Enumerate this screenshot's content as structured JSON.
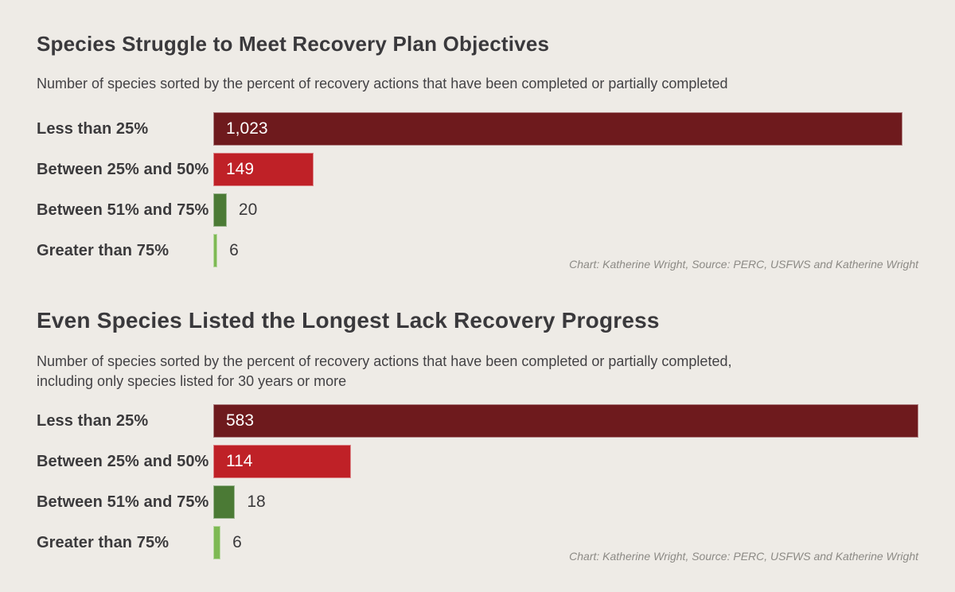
{
  "page": {
    "background": "#eeebe6",
    "accent_colors": {
      "dark_red": "#6e1a1d",
      "red": "#bf2127",
      "dark_green": "#4b7a35",
      "light_green": "#7eb954"
    },
    "text_colors": {
      "title": "#3a393c",
      "body": "#3b3a3c",
      "attribution": "#8c8a85"
    }
  },
  "chart_data": [
    {
      "type": "bar",
      "orientation": "horizontal",
      "title": "Species Struggle to Meet Recovery Plan Objectives",
      "subtitle": "Number of species sorted by the percent of recovery actions that have been completed or partially completed",
      "attribution": "Chart: Katherine Wright, Source: PERC, USFWS and Katherine Wright",
      "categories": [
        "Less than 25%",
        "Between 25% and 50%",
        "Between 51% and 75%",
        "Greater than 75%"
      ],
      "values": [
        1023,
        149,
        20,
        6
      ],
      "value_labels": [
        "1,023",
        "149",
        "20",
        "6"
      ],
      "bar_colors": [
        "#6e1a1d",
        "#bf2127",
        "#4b7a35",
        "#7eb954"
      ],
      "value_label_position": [
        "inside",
        "inside",
        "outside",
        "outside"
      ],
      "xlim": [
        0,
        1023
      ],
      "grid": false,
      "legend": false,
      "xlabel": "",
      "ylabel": ""
    },
    {
      "type": "bar",
      "orientation": "horizontal",
      "title": "Even Species Listed the Longest Lack Recovery Progress",
      "subtitle": "Number of species sorted by the percent of recovery actions that have been completed or partially completed,\nincluding only species listed for 30 years or more",
      "attribution": "Chart: Katherine Wright, Source: PERC, USFWS and Katherine Wright",
      "categories": [
        "Less than 25%",
        "Between 25% and 50%",
        "Between 51% and 75%",
        "Greater than 75%"
      ],
      "values": [
        583,
        114,
        18,
        6
      ],
      "value_labels": [
        "583",
        "114",
        "18",
        "6"
      ],
      "bar_colors": [
        "#6e1a1d",
        "#bf2127",
        "#4b7a35",
        "#7eb954"
      ],
      "value_label_position": [
        "inside",
        "inside",
        "outside",
        "outside"
      ],
      "xlim": [
        0,
        583
      ],
      "grid": false,
      "legend": false,
      "xlabel": "",
      "ylabel": ""
    }
  ]
}
